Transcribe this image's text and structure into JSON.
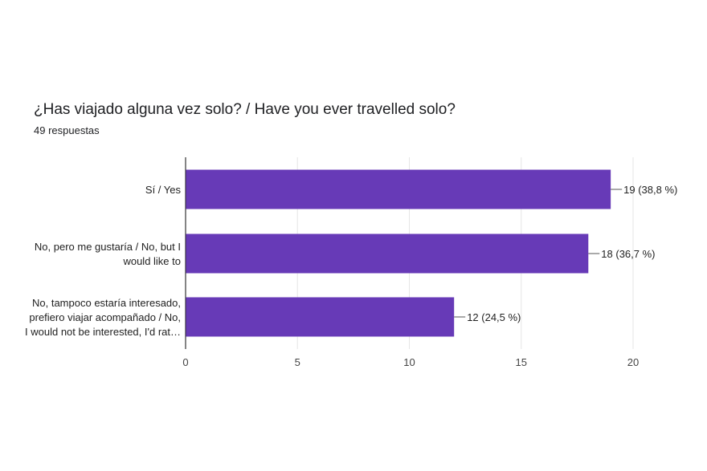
{
  "chart_data": {
    "type": "bar",
    "orientation": "horizontal",
    "title": "¿Has viajado alguna vez solo? / Have you ever travelled solo?",
    "subtitle": "49 respuestas",
    "categories": [
      [
        "Sí / Yes"
      ],
      [
        "No, pero me gustaría / No, but I",
        "would like to"
      ],
      [
        "No, tampoco estaría interesado,",
        "prefiero viajar acompañado / No,",
        "I would not be interested, I'd rat…"
      ]
    ],
    "values": [
      19,
      18,
      12
    ],
    "data_labels": [
      "19 (38,8 %)",
      "18 (36,7 %)",
      "12 (24,5 %)"
    ],
    "xlim": [
      0,
      20
    ],
    "ticks": [
      0,
      5,
      10,
      15,
      20
    ],
    "grid": true,
    "bar_color": "#673ab7",
    "grid_color": "#e6e6e6"
  }
}
